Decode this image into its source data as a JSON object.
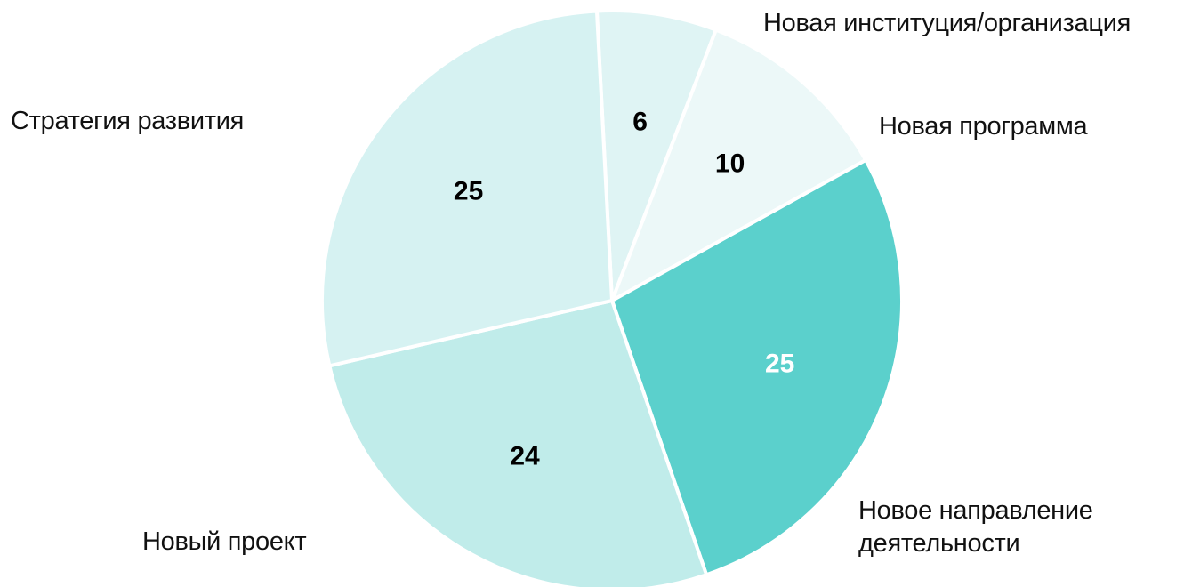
{
  "chart_data": {
    "type": "pie",
    "categories": [
      "Новая институция/организация",
      "Новая программа",
      "Новое направление деятельности",
      "Новый проект",
      "Стратегия развития"
    ],
    "values": [
      6,
      10,
      25,
      24,
      25
    ],
    "colors": [
      "#dff4f4",
      "#ecf8f8",
      "#5bd0cc",
      "#c0ecea",
      "#d6f2f2"
    ],
    "value_label_colors": [
      "#000000",
      "#000000",
      "#ffffff",
      "#000000",
      "#000000"
    ]
  }
}
